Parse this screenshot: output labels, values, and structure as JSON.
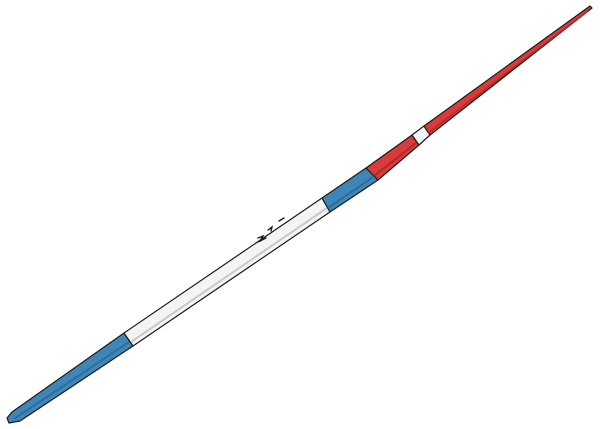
{
  "colors": {
    "background": "#ffffff",
    "outline": "#1b1b1b",
    "blue": "#3f86b8",
    "blue_shadow": "#2f6d99",
    "white": "#f4f4f4",
    "white_shadow": "#c9c9c9",
    "red": "#d93a3a",
    "red_shadow": "#b02b2b"
  },
  "object": {
    "name": "javelin",
    "sections": [
      "blue-tail",
      "white-shaft",
      "blue-grip",
      "red-head",
      "white-band",
      "red-tip"
    ]
  }
}
